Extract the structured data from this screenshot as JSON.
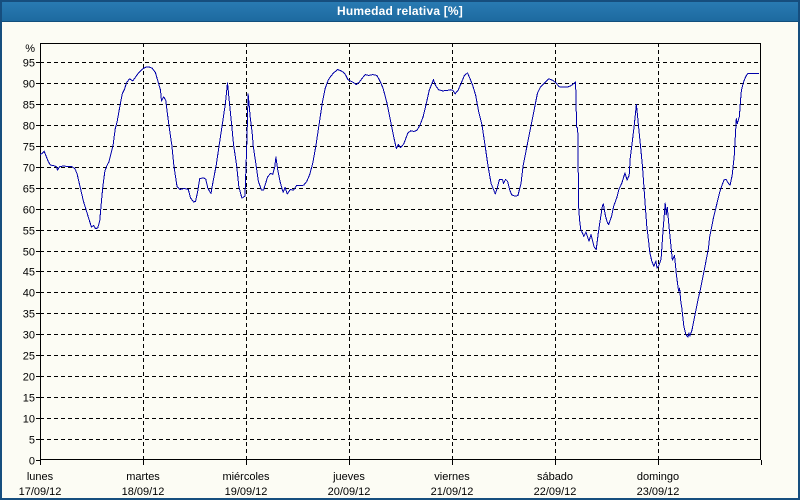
{
  "window": {
    "title": "Humedad relativa [%]"
  },
  "colors": {
    "line": "#0000aa",
    "titlebar_bg": "#1d6aa0",
    "border": "#164e7e",
    "background": "#fcfcf4",
    "grid": "#000000",
    "text": "#000000",
    "title_text": "#ffffff"
  },
  "y_axis": {
    "unit_label": "%",
    "tick_labels": [
      "95",
      "90",
      "85",
      "80",
      "75",
      "70",
      "65",
      "60",
      "55",
      "50",
      "45",
      "40",
      "35",
      "30",
      "25",
      "20",
      "15",
      "10",
      "5",
      "0"
    ]
  },
  "x_axis": {
    "days": [
      {
        "name": "lunes",
        "date": "17/09/12"
      },
      {
        "name": "martes",
        "date": "18/09/12"
      },
      {
        "name": "miércoles",
        "date": "19/09/12"
      },
      {
        "name": "jueves",
        "date": "20/09/12"
      },
      {
        "name": "viernes",
        "date": "21/09/12"
      },
      {
        "name": "sábado",
        "date": "22/09/12"
      },
      {
        "name": "domingo",
        "date": "23/09/12"
      }
    ]
  },
  "chart_data": {
    "type": "line",
    "title": "Humedad relativa [%]",
    "xlabel": "",
    "ylabel": "%",
    "ylim": [
      0,
      99.5
    ],
    "y_tick_step": 5,
    "grid": true,
    "legend_position": "none",
    "x_unit": "days since lunes 17/09/12 00:00",
    "x_days": 7,
    "series": [
      {
        "name": "Humedad relativa",
        "color": "#0000aa",
        "points": [
          [
            0,
            72.8
          ],
          [
            0.02,
            73.2
          ],
          [
            0.04,
            73.7
          ],
          [
            0.06,
            72.5
          ],
          [
            0.08,
            71.3
          ],
          [
            0.1,
            70.4
          ],
          [
            0.13,
            70.3
          ],
          [
            0.16,
            70
          ],
          [
            0.17,
            69.2
          ],
          [
            0.19,
            70
          ],
          [
            0.23,
            70.2
          ],
          [
            0.27,
            70
          ],
          [
            0.31,
            70
          ],
          [
            0.34,
            69.5
          ],
          [
            0.36,
            68.3
          ],
          [
            0.39,
            65.1
          ],
          [
            0.42,
            61.9
          ],
          [
            0.46,
            58.7
          ],
          [
            0.49,
            56.3
          ],
          [
            0.5,
            55.6
          ],
          [
            0.52,
            56
          ],
          [
            0.54,
            55.2
          ],
          [
            0.56,
            55.4
          ],
          [
            0.58,
            57
          ],
          [
            0.59,
            60
          ],
          [
            0.61,
            65.2
          ],
          [
            0.63,
            69
          ],
          [
            0.65,
            70.3
          ],
          [
            0.67,
            71.2
          ],
          [
            0.71,
            75.2
          ],
          [
            0.73,
            79
          ],
          [
            0.75,
            81
          ],
          [
            0.78,
            85
          ],
          [
            0.8,
            87.5
          ],
          [
            0.82,
            88.5
          ],
          [
            0.84,
            90
          ],
          [
            0.87,
            91
          ],
          [
            0.9,
            90.5
          ],
          [
            0.93,
            91.5
          ],
          [
            0.96,
            92.5
          ],
          [
            1,
            93.4
          ],
          [
            1.03,
            93.8
          ],
          [
            1.06,
            93.8
          ],
          [
            1.09,
            93.5
          ],
          [
            1.12,
            92.5
          ],
          [
            1.15,
            90
          ],
          [
            1.17,
            88.3
          ],
          [
            1.18,
            85.7
          ],
          [
            1.2,
            86.7
          ],
          [
            1.22,
            85.9
          ],
          [
            1.25,
            80.1
          ],
          [
            1.28,
            75.2
          ],
          [
            1.3,
            70.2
          ],
          [
            1.33,
            65.3
          ],
          [
            1.36,
            64.6
          ],
          [
            1.4,
            64.8
          ],
          [
            1.44,
            64.6
          ],
          [
            1.46,
            62.6
          ],
          [
            1.49,
            61.6
          ],
          [
            1.51,
            61.7
          ],
          [
            1.53,
            64
          ],
          [
            1.55,
            67.2
          ],
          [
            1.59,
            67.3
          ],
          [
            1.61,
            67
          ],
          [
            1.63,
            64.8
          ],
          [
            1.66,
            63.6
          ],
          [
            1.68,
            66.4
          ],
          [
            1.71,
            70.2
          ],
          [
            1.74,
            75.2
          ],
          [
            1.77,
            80.1
          ],
          [
            1.8,
            85.1
          ],
          [
            1.82,
            90
          ],
          [
            1.84,
            85.1
          ],
          [
            1.86,
            80.1
          ],
          [
            1.88,
            75.2
          ],
          [
            1.91,
            70.2
          ],
          [
            1.93,
            65.3
          ],
          [
            1.96,
            62.5
          ],
          [
            1.99,
            63
          ],
          [
            2,
            70
          ],
          [
            2.01,
            77
          ],
          [
            2.02,
            87.4
          ],
          [
            2.03,
            85
          ],
          [
            2.04,
            82
          ],
          [
            2.06,
            78
          ],
          [
            2.07,
            75
          ],
          [
            2.1,
            70
          ],
          [
            2.12,
            66.5
          ],
          [
            2.15,
            64.5
          ],
          [
            2.17,
            64.4
          ],
          [
            2.19,
            66
          ],
          [
            2.21,
            67.6
          ],
          [
            2.24,
            68.4
          ],
          [
            2.26,
            68.2
          ],
          [
            2.28,
            70
          ],
          [
            2.29,
            72.3
          ],
          [
            2.31,
            69
          ],
          [
            2.33,
            66.5
          ],
          [
            2.36,
            63.9
          ],
          [
            2.38,
            65.1
          ],
          [
            2.4,
            63.5
          ],
          [
            2.43,
            64.6
          ],
          [
            2.46,
            64.4
          ],
          [
            2.49,
            65.5
          ],
          [
            2.52,
            65.5
          ],
          [
            2.56,
            65.6
          ],
          [
            2.59,
            66.5
          ],
          [
            2.62,
            68.3
          ],
          [
            2.65,
            71
          ],
          [
            2.68,
            75.2
          ],
          [
            2.71,
            80.1
          ],
          [
            2.74,
            85.1
          ],
          [
            2.77,
            88.8
          ],
          [
            2.8,
            90.8
          ],
          [
            2.83,
            91.8
          ],
          [
            2.85,
            92.4
          ],
          [
            2.89,
            93.2
          ],
          [
            2.93,
            92.8
          ],
          [
            2.96,
            92.2
          ],
          [
            2.99,
            90.8
          ],
          [
            3.02,
            90.4
          ],
          [
            3.05,
            90
          ],
          [
            3.07,
            89.6
          ],
          [
            3.1,
            90.2
          ],
          [
            3.13,
            91.2
          ],
          [
            3.16,
            92
          ],
          [
            3.19,
            91.8
          ],
          [
            3.23,
            92
          ],
          [
            3.27,
            91.8
          ],
          [
            3.3,
            90.5
          ],
          [
            3.33,
            88.8
          ],
          [
            3.37,
            85.1
          ],
          [
            3.41,
            80.1
          ],
          [
            3.44,
            76.5
          ],
          [
            3.46,
            74.3
          ],
          [
            3.48,
            75.3
          ],
          [
            3.5,
            74.6
          ],
          [
            3.53,
            75.4
          ],
          [
            3.55,
            76.6
          ],
          [
            3.57,
            78
          ],
          [
            3.6,
            78.6
          ],
          [
            3.63,
            78.4
          ],
          [
            3.66,
            78.7
          ],
          [
            3.69,
            80
          ],
          [
            3.72,
            82
          ],
          [
            3.75,
            85.1
          ],
          [
            3.78,
            88.3
          ],
          [
            3.82,
            90.8
          ],
          [
            3.84,
            89.4
          ],
          [
            3.87,
            88.4
          ],
          [
            3.91,
            88.1
          ],
          [
            3.95,
            88.2
          ],
          [
            3.99,
            88.4
          ],
          [
            4.01,
            88.2
          ],
          [
            4.03,
            87.4
          ],
          [
            4.06,
            88.3
          ],
          [
            4.09,
            90
          ],
          [
            4.12,
            91.8
          ],
          [
            4.15,
            92.4
          ],
          [
            4.17,
            91.3
          ],
          [
            4.2,
            89.5
          ],
          [
            4.23,
            87
          ],
          [
            4.26,
            83
          ],
          [
            4.29,
            80.1
          ],
          [
            4.32,
            75.2
          ],
          [
            4.35,
            70.2
          ],
          [
            4.38,
            66
          ],
          [
            4.42,
            63.5
          ],
          [
            4.44,
            65
          ],
          [
            4.46,
            66.9
          ],
          [
            4.49,
            66.9
          ],
          [
            4.5,
            66
          ],
          [
            4.52,
            67
          ],
          [
            4.54,
            66.5
          ],
          [
            4.56,
            64.5
          ],
          [
            4.58,
            63.3
          ],
          [
            4.61,
            63
          ],
          [
            4.64,
            63.1
          ],
          [
            4.67,
            66
          ],
          [
            4.69,
            70.2
          ],
          [
            4.73,
            75.2
          ],
          [
            4.77,
            80.1
          ],
          [
            4.81,
            85.1
          ],
          [
            4.83,
            87.6
          ],
          [
            4.86,
            89.1
          ],
          [
            4.9,
            90
          ],
          [
            4.94,
            91
          ],
          [
            4.98,
            90.6
          ],
          [
            5.01,
            90
          ],
          [
            5.04,
            89.1
          ],
          [
            5.08,
            89
          ],
          [
            5.12,
            89
          ],
          [
            5.15,
            89.3
          ],
          [
            5.17,
            89.6
          ],
          [
            5.19,
            90
          ],
          [
            5.2,
            90.2
          ],
          [
            5.21,
            79.5
          ],
          [
            5.22,
            79.2
          ],
          [
            5.23,
            60.2
          ],
          [
            5.24,
            57
          ],
          [
            5.25,
            55
          ],
          [
            5.27,
            54
          ],
          [
            5.28,
            53.4
          ],
          [
            5.3,
            54.4
          ],
          [
            5.33,
            52.2
          ],
          [
            5.35,
            53.8
          ],
          [
            5.38,
            50.9
          ],
          [
            5.4,
            50.2
          ],
          [
            5.42,
            54.2
          ],
          [
            5.44,
            57.4
          ],
          [
            5.46,
            60.6
          ],
          [
            5.47,
            61.1
          ],
          [
            5.49,
            58.2
          ],
          [
            5.51,
            56.6
          ],
          [
            5.52,
            56.2
          ],
          [
            5.55,
            58.2
          ],
          [
            5.57,
            60.6
          ],
          [
            5.6,
            62.6
          ],
          [
            5.62,
            64.6
          ],
          [
            5.65,
            66.2
          ],
          [
            5.67,
            67.8
          ],
          [
            5.68,
            68.5
          ],
          [
            5.7,
            66.8
          ],
          [
            5.72,
            68
          ],
          [
            5.73,
            72
          ],
          [
            5.75,
            76
          ],
          [
            5.77,
            80
          ],
          [
            5.79,
            84.9
          ],
          [
            5.81,
            80
          ],
          [
            5.83,
            75
          ],
          [
            5.85,
            70
          ],
          [
            5.87,
            63
          ],
          [
            5.89,
            56
          ],
          [
            5.91,
            52
          ],
          [
            5.92,
            49.5
          ],
          [
            5.94,
            47.5
          ],
          [
            5.96,
            46.2
          ],
          [
            5.98,
            47.5
          ],
          [
            5.99,
            45.8
          ],
          [
            6.01,
            46.5
          ],
          [
            6.03,
            48
          ],
          [
            6.05,
            55
          ],
          [
            6.07,
            61.3
          ],
          [
            6.08,
            58.5
          ],
          [
            6.09,
            60.3
          ],
          [
            6.11,
            55
          ],
          [
            6.13,
            50
          ],
          [
            6.14,
            47.7
          ],
          [
            6.16,
            48.8
          ],
          [
            6.18,
            44
          ],
          [
            6.2,
            40.3
          ],
          [
            6.21,
            41
          ],
          [
            6.22,
            38
          ],
          [
            6.23,
            36.5
          ],
          [
            6.25,
            32
          ],
          [
            6.27,
            30
          ],
          [
            6.29,
            29.3
          ],
          [
            6.3,
            30.3
          ],
          [
            6.31,
            29.6
          ],
          [
            6.33,
            31
          ],
          [
            6.35,
            33.5
          ],
          [
            6.37,
            36
          ],
          [
            6.39,
            38.5
          ],
          [
            6.41,
            40.5
          ],
          [
            6.43,
            43
          ],
          [
            6.45,
            45.5
          ],
          [
            6.47,
            48
          ],
          [
            6.49,
            50.5
          ],
          [
            6.5,
            53
          ],
          [
            6.52,
            55.5
          ],
          [
            6.54,
            58
          ],
          [
            6.56,
            60
          ],
          [
            6.58,
            62
          ],
          [
            6.6,
            64
          ],
          [
            6.62,
            65.5
          ],
          [
            6.64,
            66.8
          ],
          [
            6.66,
            67
          ],
          [
            6.68,
            66.2
          ],
          [
            6.7,
            65.6
          ],
          [
            6.72,
            68
          ],
          [
            6.74,
            72.5
          ],
          [
            6.76,
            81.5
          ],
          [
            6.77,
            80.3
          ],
          [
            6.79,
            82
          ],
          [
            6.8,
            85.5
          ],
          [
            6.81,
            88.2
          ],
          [
            6.83,
            90.2
          ],
          [
            6.85,
            91.4
          ],
          [
            6.87,
            92.2
          ],
          [
            6.91,
            92.3
          ],
          [
            6.95,
            92.3
          ],
          [
            6.98,
            92.3
          ]
        ]
      }
    ]
  }
}
